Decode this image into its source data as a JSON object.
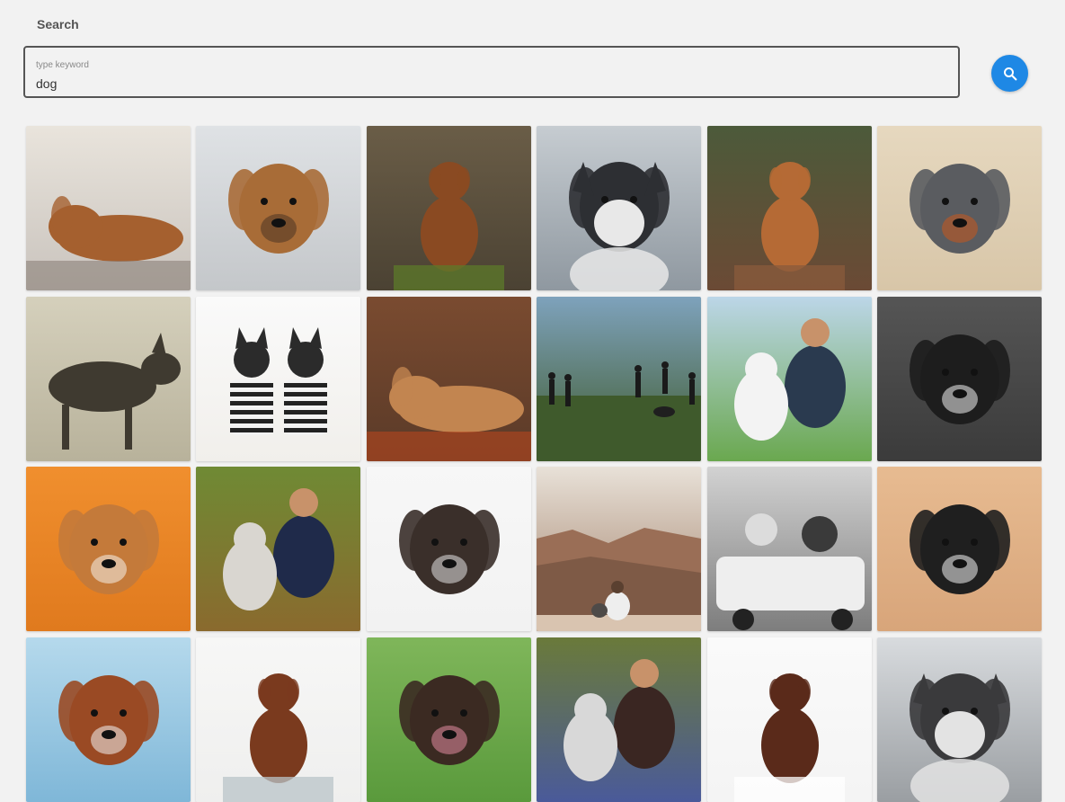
{
  "header": {
    "title": "Search"
  },
  "search": {
    "label": "type keyword",
    "value": "dog",
    "button_icon": "search-icon",
    "button_color": "#1e88e5"
  },
  "results": [
    {
      "name": "golden-retriever-lying-on-beach",
      "bg": "#c9c3bd",
      "top": "#e9e4dc",
      "dog": "#a5602f",
      "accent": "#8a8178",
      "pose": "lying"
    },
    {
      "name": "golden-retriever-in-snow",
      "bg": "#c4c7ca",
      "top": "#dfe2e5",
      "dog": "#a86c37",
      "accent": "#4a3524",
      "pose": "face"
    },
    {
      "name": "toller-sitting-on-mossy-stump",
      "bg": "#4b4233",
      "top": "#6a5d47",
      "dog": "#8a4a22",
      "accent": "#5c7a2a",
      "pose": "sit"
    },
    {
      "name": "husky-sitting-on-pavement",
      "bg": "#8f98a0",
      "top": "#c6ccd1",
      "dog": "#2d2f33",
      "accent": "#e8e8e8",
      "pose": "husky"
    },
    {
      "name": "toller-in-autumn-bushes",
      "bg": "#6b4a35",
      "top": "#4c5a3a",
      "dog": "#b56a35",
      "accent": "#8a5b3c",
      "pose": "sit"
    },
    {
      "name": "merle-border-collie-with-basketball",
      "bg": "#d8c6a8",
      "top": "#e6d8bf",
      "dog": "#5a5c60",
      "accent": "#c8571c",
      "pose": "face"
    },
    {
      "name": "african-wild-dog-in-grass",
      "bg": "#b8b29b",
      "top": "#d5d0bc",
      "dog": "#3f3a30",
      "accent": "#8a7a55",
      "pose": "walk"
    },
    {
      "name": "two-boston-terriers-in-striped-shirts",
      "bg": "#f1efeb",
      "top": "#fafafa",
      "dog": "#2b2b2b",
      "accent": "#e7e7e7",
      "pose": "pair"
    },
    {
      "name": "spaniel-lying-in-autumn-leaves",
      "bg": "#5a3a28",
      "top": "#7a4b30",
      "dog": "#c28550",
      "accent": "#b5461e",
      "pose": "lying"
    },
    {
      "name": "people-walking-dogs-in-field",
      "bg": "#3f5a2c",
      "top": "#7ea2bc",
      "dog": "#1f1f1f",
      "accent": "#cfe0ea",
      "pose": "field"
    },
    {
      "name": "man-playing-with-white-dog",
      "bg": "#6aa84f",
      "top": "#bcd6e8",
      "dog": "#f3f3f3",
      "accent": "#2a3a4f",
      "pose": "person"
    },
    {
      "name": "boston-terrier-portrait",
      "bg": "#3b3b3b",
      "top": "#555555",
      "dog": "#1d1d1d",
      "accent": "#f1f1f1",
      "pose": "face"
    },
    {
      "name": "corgi-on-orange-background",
      "bg": "#e07a1e",
      "top": "#f08f2e",
      "dog": "#c47a3a",
      "accent": "#f6f1ea",
      "pose": "face"
    },
    {
      "name": "child-hugging-husky-in-autumn",
      "bg": "#8a6a2e",
      "top": "#6f8a34",
      "dog": "#d9d6d0",
      "accent": "#1f2a4a",
      "pose": "person"
    },
    {
      "name": "pug-in-white-hoodie",
      "bg": "#f2f2f2",
      "top": "#f7f7f7",
      "dog": "#3a2f2a",
      "accent": "#e2e2e2",
      "pose": "face"
    },
    {
      "name": "person-and-dog-at-canyon",
      "bg": "#a07e66",
      "top": "#e8e1d8",
      "dog": "#4e4a48",
      "accent": "#7b5c4c",
      "pose": "canyon"
    },
    {
      "name": "child-and-dog-in-wagon",
      "bg": "#7d7d7d",
      "top": "#d2d2d2",
      "dog": "#3a3a3a",
      "accent": "#eeeeee",
      "pose": "wagon"
    },
    {
      "name": "shih-tzu-portrait",
      "bg": "#d8a57a",
      "top": "#e7bb91",
      "dog": "#1f1f1f",
      "accent": "#f2f2f2",
      "pose": "face"
    },
    {
      "name": "setter-puppy-with-snow-on-nose",
      "bg": "#7fb7d8",
      "top": "#b5d9ec",
      "dog": "#9a4a24",
      "accent": "#f2f2f2",
      "pose": "face"
    },
    {
      "name": "setter-with-bandana-taking-treat",
      "bg": "#efefee",
      "top": "#f7f7f6",
      "dog": "#7a3a1e",
      "accent": "#b9c4c8",
      "pose": "sit"
    },
    {
      "name": "chocolate-lab-puppy-in-grass",
      "bg": "#5a9a3c",
      "top": "#7fb65a",
      "dog": "#3b2a22",
      "accent": "#e28aa0",
      "pose": "face"
    },
    {
      "name": "woman-with-husky-in-flowers",
      "bg": "#4a5a9a",
      "top": "#6a7a3a",
      "dog": "#d8d8d8",
      "accent": "#3a2622",
      "pose": "person"
    },
    {
      "name": "springer-spaniel-in-snow",
      "bg": "#f4f4f4",
      "top": "#fafafa",
      "dog": "#5a2a1a",
      "accent": "#ffffff",
      "pose": "sit"
    },
    {
      "name": "sled-husky-with-harness",
      "bg": "#9a9ea2",
      "top": "#d8dbde",
      "dog": "#3a3a3c",
      "accent": "#e3e3e3",
      "pose": "husky"
    }
  ]
}
